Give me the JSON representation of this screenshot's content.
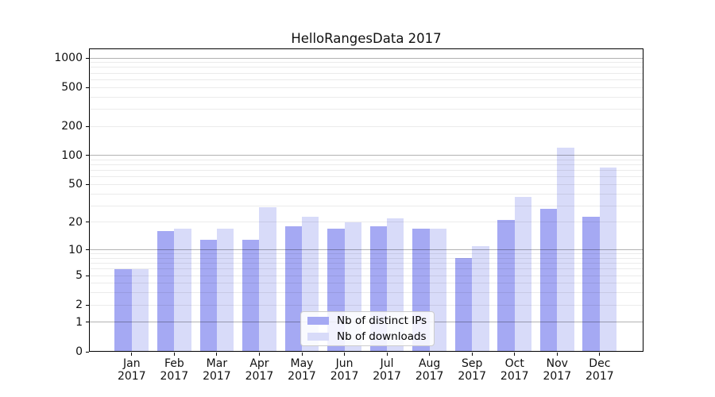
{
  "title": "HelloRangesData 2017",
  "chart_data": {
    "type": "bar",
    "title": "HelloRangesData 2017",
    "xlabel": "",
    "ylabel": "",
    "categories": [
      "Jan",
      "Feb",
      "Mar",
      "Apr",
      "May",
      "Jun",
      "Jul",
      "Aug",
      "Sep",
      "Oct",
      "Nov",
      "Dec"
    ],
    "category_year": "2017",
    "series": [
      {
        "name": "Nb of distinct IPs",
        "color": "#a5a9f3",
        "values": [
          6,
          16,
          13,
          13,
          18,
          17,
          18,
          17,
          8,
          21,
          28,
          23
        ]
      },
      {
        "name": "Nb of downloads",
        "color": "#d8dbf9",
        "values": [
          6,
          17,
          17,
          29,
          23,
          20,
          22,
          17,
          11,
          37,
          120,
          75
        ]
      }
    ],
    "y_axis": {
      "scale": "symlog (y ~ ln(1+v))",
      "ticks": [
        0,
        1,
        2,
        5,
        10,
        20,
        50,
        100,
        200,
        500,
        1000
      ],
      "major_grid": [
        1,
        10,
        100,
        1000
      ],
      "minor_grid": [
        2,
        3,
        4,
        5,
        6,
        7,
        8,
        9,
        20,
        30,
        40,
        50,
        60,
        70,
        80,
        90,
        200,
        300,
        400,
        500,
        600,
        700,
        800,
        900
      ]
    },
    "grid": true,
    "legend_position": "lower center"
  }
}
